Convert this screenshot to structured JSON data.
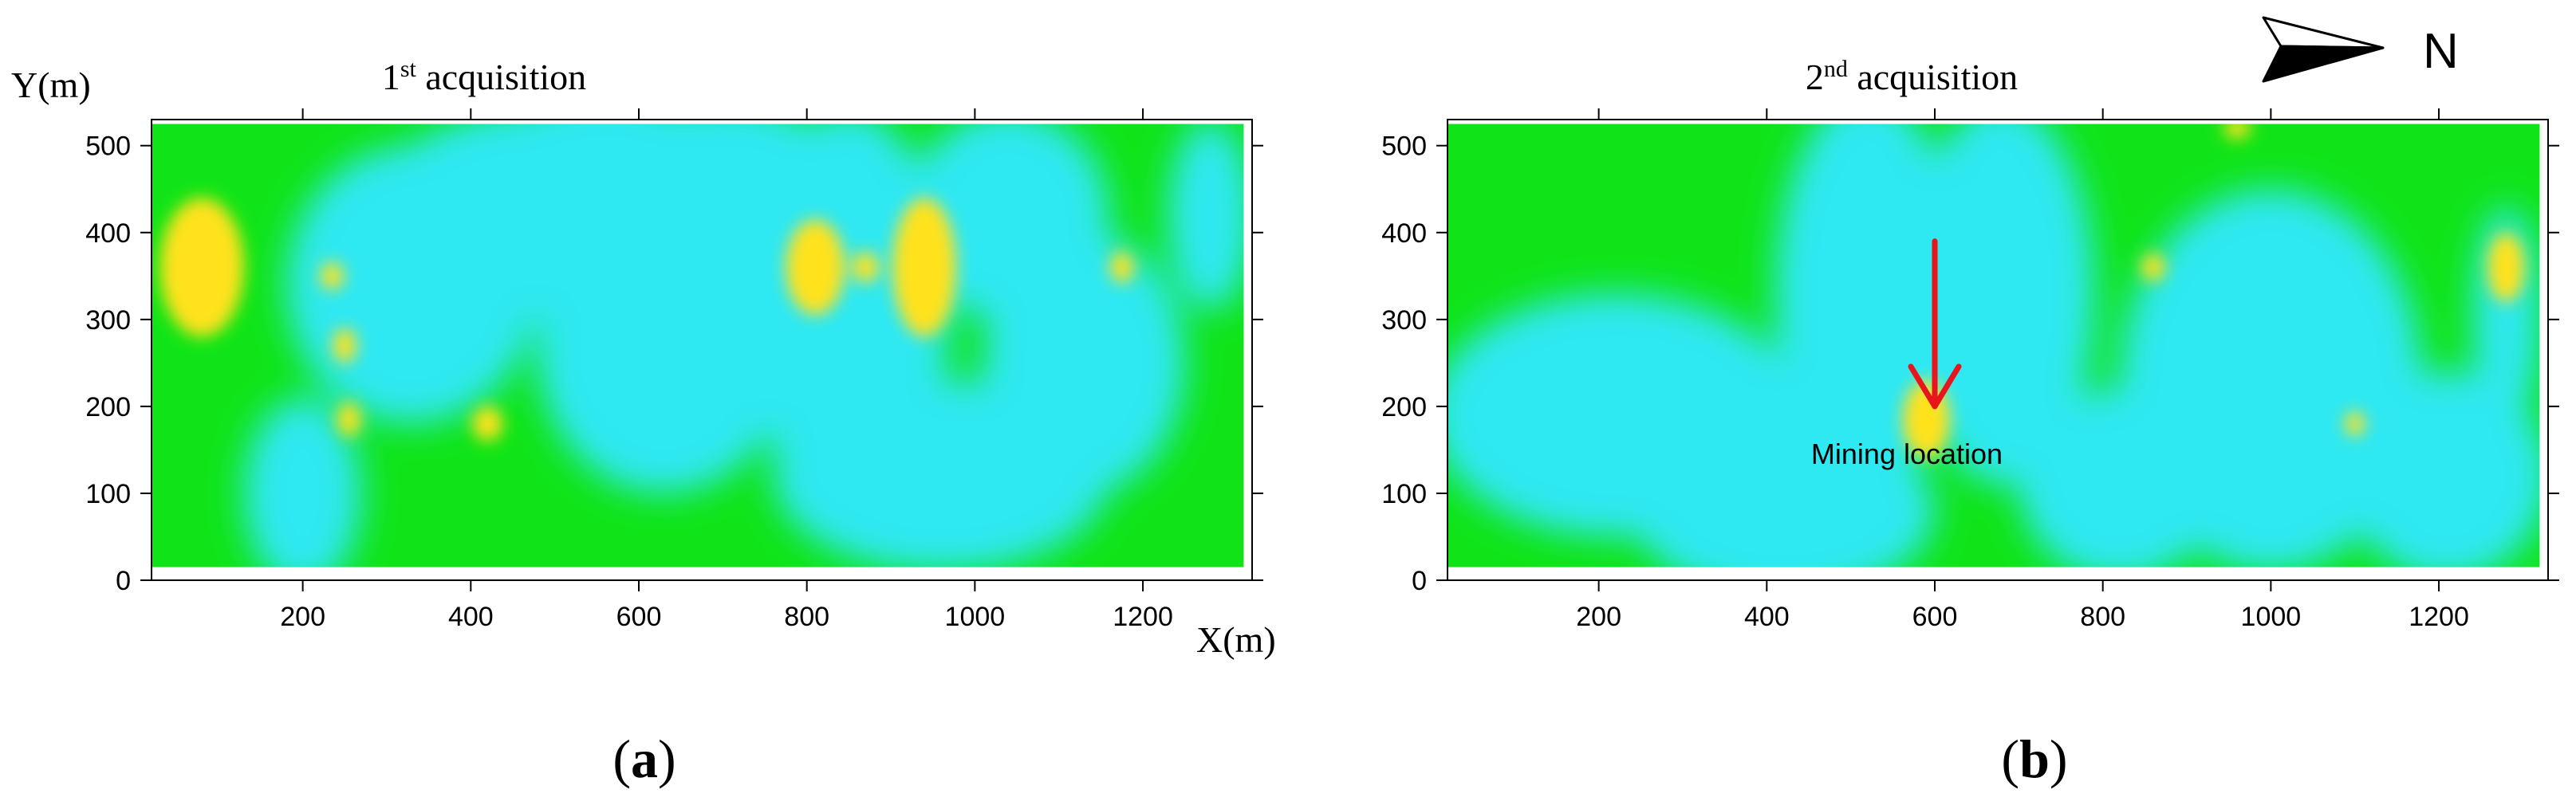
{
  "north": {
    "label": "N"
  },
  "chart_data": [
    {
      "type": "heatmap",
      "panel": "(a)",
      "caption_letter": "a",
      "title": {
        "base": "1",
        "sup": "st",
        "rest": " acquisition"
      },
      "xlabel": "X(m)",
      "ylabel": "Y(m)",
      "xlim": [
        20,
        1330
      ],
      "ylim": [
        0,
        530
      ],
      "data_x": [
        20,
        1320
      ],
      "data_y": [
        15,
        525
      ],
      "xticks": [
        200,
        400,
        600,
        800,
        1000,
        1200
      ],
      "yticks": [
        0,
        100,
        200,
        300,
        400,
        500
      ],
      "colors": {
        "background": "#10e418",
        "low": "#2ee8f2",
        "high": "#ffe21a"
      },
      "anomalies": [
        {
          "kind": "low",
          "x": 330,
          "y": 340,
          "rx": 150,
          "ry": 160
        },
        {
          "kind": "low",
          "x": 470,
          "y": 420,
          "rx": 190,
          "ry": 120
        },
        {
          "kind": "low",
          "x": 560,
          "y": 470,
          "rx": 150,
          "ry": 90
        },
        {
          "kind": "low",
          "x": 700,
          "y": 430,
          "rx": 170,
          "ry": 120
        },
        {
          "kind": "low",
          "x": 630,
          "y": 260,
          "rx": 150,
          "ry": 160
        },
        {
          "kind": "low",
          "x": 850,
          "y": 310,
          "rx": 120,
          "ry": 230
        },
        {
          "kind": "low",
          "x": 960,
          "y": 120,
          "rx": 200,
          "ry": 110
        },
        {
          "kind": "low",
          "x": 1040,
          "y": 420,
          "rx": 120,
          "ry": 120
        },
        {
          "kind": "low",
          "x": 1130,
          "y": 250,
          "rx": 120,
          "ry": 150
        },
        {
          "kind": "low",
          "x": 200,
          "y": 100,
          "rx": 70,
          "ry": 110
        },
        {
          "kind": "low",
          "x": 1280,
          "y": 420,
          "rx": 50,
          "ry": 110
        },
        {
          "kind": "high",
          "x": 80,
          "y": 360,
          "rx": 50,
          "ry": 80
        },
        {
          "kind": "high",
          "x": 810,
          "y": 360,
          "rx": 35,
          "ry": 55
        },
        {
          "kind": "high",
          "x": 940,
          "y": 360,
          "rx": 38,
          "ry": 80
        },
        {
          "kind": "high",
          "x": 870,
          "y": 360,
          "rx": 16,
          "ry": 18
        },
        {
          "kind": "high",
          "x": 420,
          "y": 180,
          "rx": 18,
          "ry": 20
        },
        {
          "kind": "high",
          "x": 1175,
          "y": 360,
          "rx": 14,
          "ry": 18
        },
        {
          "kind": "high",
          "x": 250,
          "y": 270,
          "rx": 14,
          "ry": 20
        },
        {
          "kind": "high",
          "x": 255,
          "y": 185,
          "rx": 14,
          "ry": 20
        },
        {
          "kind": "high",
          "x": 235,
          "y": 350,
          "rx": 14,
          "ry": 16
        }
      ]
    },
    {
      "type": "heatmap",
      "panel": "(b)",
      "caption_letter": "b",
      "title": {
        "base": "2",
        "sup": "nd",
        "rest": " acquisition"
      },
      "xlabel": "",
      "ylabel": "",
      "xlim": [
        20,
        1330
      ],
      "ylim": [
        0,
        530
      ],
      "data_x": [
        20,
        1320
      ],
      "data_y": [
        15,
        525
      ],
      "xticks": [
        200,
        400,
        600,
        800,
        1000,
        1200
      ],
      "yticks": [
        0,
        100,
        200,
        300,
        400,
        500
      ],
      "colors": {
        "background": "#10e418",
        "low": "#2ee8f2",
        "high": "#ffe21a"
      },
      "anomalies": [
        {
          "kind": "low",
          "x": 220,
          "y": 190,
          "rx": 220,
          "ry": 140
        },
        {
          "kind": "low",
          "x": 420,
          "y": 80,
          "rx": 180,
          "ry": 100
        },
        {
          "kind": "low",
          "x": 520,
          "y": 330,
          "rx": 110,
          "ry": 230
        },
        {
          "kind": "low",
          "x": 680,
          "y": 330,
          "rx": 110,
          "ry": 220
        },
        {
          "kind": "low",
          "x": 820,
          "y": 110,
          "rx": 120,
          "ry": 110
        },
        {
          "kind": "low",
          "x": 1000,
          "y": 230,
          "rx": 180,
          "ry": 220
        },
        {
          "kind": "low",
          "x": 1210,
          "y": 120,
          "rx": 120,
          "ry": 120
        },
        {
          "kind": "low",
          "x": 1280,
          "y": 300,
          "rx": 40,
          "ry": 130
        },
        {
          "kind": "high",
          "x": 590,
          "y": 185,
          "rx": 28,
          "ry": 45
        },
        {
          "kind": "high",
          "x": 1280,
          "y": 360,
          "rx": 22,
          "ry": 40
        },
        {
          "kind": "high",
          "x": 860,
          "y": 360,
          "rx": 14,
          "ry": 16
        },
        {
          "kind": "high",
          "x": 1100,
          "y": 180,
          "rx": 12,
          "ry": 14
        },
        {
          "kind": "high",
          "x": 960,
          "y": 520,
          "rx": 16,
          "ry": 12
        }
      ],
      "annotation": {
        "text": "Mining location",
        "arrow_from": [
          600,
          390
        ],
        "arrow_to": [
          600,
          200
        ],
        "color": "#e8161c"
      }
    }
  ]
}
